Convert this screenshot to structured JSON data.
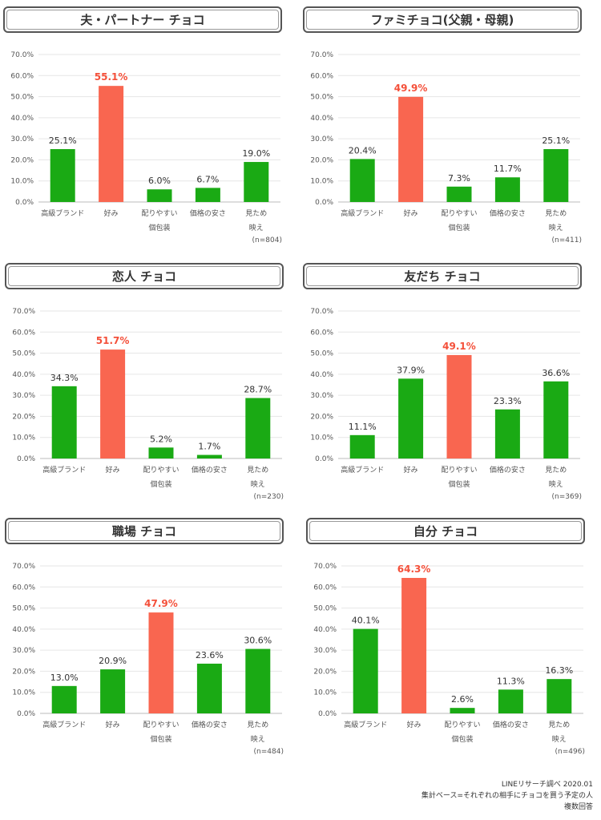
{
  "colors": {
    "bar": "#1aaa14",
    "highlight": "#f96650",
    "highlight_text": "#f4503a",
    "axis_text": "#555555"
  },
  "footnotes": {
    "line1": "LINEリサーチ調べ 2020.01",
    "line2": "集計ベース=それぞれの相手にチョコを買う予定の人",
    "line3": "複数回答"
  },
  "chart_data": [
    {
      "type": "bar",
      "title": "夫・パートナー チョコ",
      "n": "(n=804)",
      "categories": [
        [
          "高級ブランド"
        ],
        [
          "好み"
        ],
        [
          "配りやすい",
          "個包装"
        ],
        [
          "価格の安さ"
        ],
        [
          "見ため",
          "映え"
        ]
      ],
      "values": [
        25.1,
        55.1,
        6.0,
        6.7,
        19.0
      ],
      "value_labels": [
        "25.1%",
        "55.1%",
        "6.0%",
        "6.7%",
        "19.0%"
      ],
      "highlight_index": 1,
      "ylim": [
        0,
        70
      ],
      "yticks": [
        "0.0%",
        "10.0%",
        "20.0%",
        "30.0%",
        "40.0%",
        "50.0%",
        "60.0%",
        "70.0%"
      ]
    },
    {
      "type": "bar",
      "title": "ファミチョコ(父親・母親)",
      "n": "(n=411)",
      "categories": [
        [
          "高級ブランド"
        ],
        [
          "好み"
        ],
        [
          "配りやすい",
          "個包装"
        ],
        [
          "価格の安さ"
        ],
        [
          "見ため",
          "映え"
        ]
      ],
      "values": [
        20.4,
        49.9,
        7.3,
        11.7,
        25.1
      ],
      "value_labels": [
        "20.4%",
        "49.9%",
        "7.3%",
        "11.7%",
        "25.1%"
      ],
      "highlight_index": 1,
      "ylim": [
        0,
        70
      ],
      "yticks": [
        "0.0%",
        "10.0%",
        "20.0%",
        "30.0%",
        "40.0%",
        "50.0%",
        "60.0%",
        "70.0%"
      ]
    },
    {
      "type": "bar",
      "title": "恋人 チョコ",
      "n": "(n=230)",
      "categories": [
        [
          "高級ブランド"
        ],
        [
          "好み"
        ],
        [
          "配りやすい",
          "個包装"
        ],
        [
          "価格の安さ"
        ],
        [
          "見ため",
          "映え"
        ]
      ],
      "values": [
        34.3,
        51.7,
        5.2,
        1.7,
        28.7
      ],
      "value_labels": [
        "34.3%",
        "51.7%",
        "5.2%",
        "1.7%",
        "28.7%"
      ],
      "highlight_index": 1,
      "ylim": [
        0,
        70
      ],
      "yticks": [
        "0.0%",
        "10.0%",
        "20.0%",
        "30.0%",
        "40.0%",
        "50.0%",
        "60.0%",
        "70.0%"
      ]
    },
    {
      "type": "bar",
      "title": "友だち チョコ",
      "n": "(n=369)",
      "categories": [
        [
          "高級ブランド"
        ],
        [
          "好み"
        ],
        [
          "配りやすい",
          "個包装"
        ],
        [
          "価格の安さ"
        ],
        [
          "見ため",
          "映え"
        ]
      ],
      "values": [
        11.1,
        37.9,
        49.1,
        23.3,
        36.6
      ],
      "value_labels": [
        "11.1%",
        "37.9%",
        "49.1%",
        "23.3%",
        "36.6%"
      ],
      "highlight_index": 2,
      "ylim": [
        0,
        70
      ],
      "yticks": [
        "0.0%",
        "10.0%",
        "20.0%",
        "30.0%",
        "40.0%",
        "50.0%",
        "60.0%",
        "70.0%"
      ]
    },
    {
      "type": "bar",
      "title": "職場 チョコ",
      "n": "(n=484)",
      "categories": [
        [
          "高級ブランド"
        ],
        [
          "好み"
        ],
        [
          "配りやすい",
          "個包装"
        ],
        [
          "価格の安さ"
        ],
        [
          "見ため",
          "映え"
        ]
      ],
      "values": [
        13.0,
        20.9,
        47.9,
        23.6,
        30.6
      ],
      "value_labels": [
        "13.0%",
        "20.9%",
        "47.9%",
        "23.6%",
        "30.6%"
      ],
      "highlight_index": 2,
      "ylim": [
        0,
        70
      ],
      "yticks": [
        "0.0%",
        "10.0%",
        "20.0%",
        "30.0%",
        "40.0%",
        "50.0%",
        "60.0%",
        "70.0%"
      ]
    },
    {
      "type": "bar",
      "title": "自分 チョコ",
      "n": "(n=496)",
      "categories": [
        [
          "高級ブランド"
        ],
        [
          "好み"
        ],
        [
          "配りやすい",
          "個包装"
        ],
        [
          "価格の安さ"
        ],
        [
          "見ため",
          "映え"
        ]
      ],
      "values": [
        40.1,
        64.3,
        2.6,
        11.3,
        16.3
      ],
      "value_labels": [
        "40.1%",
        "64.3%",
        "2.6%",
        "11.3%",
        "16.3%"
      ],
      "highlight_index": 1,
      "ylim": [
        0,
        70
      ],
      "yticks": [
        "0.0%",
        "10.0%",
        "20.0%",
        "30.0%",
        "40.0%",
        "50.0%",
        "60.0%",
        "70.0%"
      ]
    }
  ]
}
